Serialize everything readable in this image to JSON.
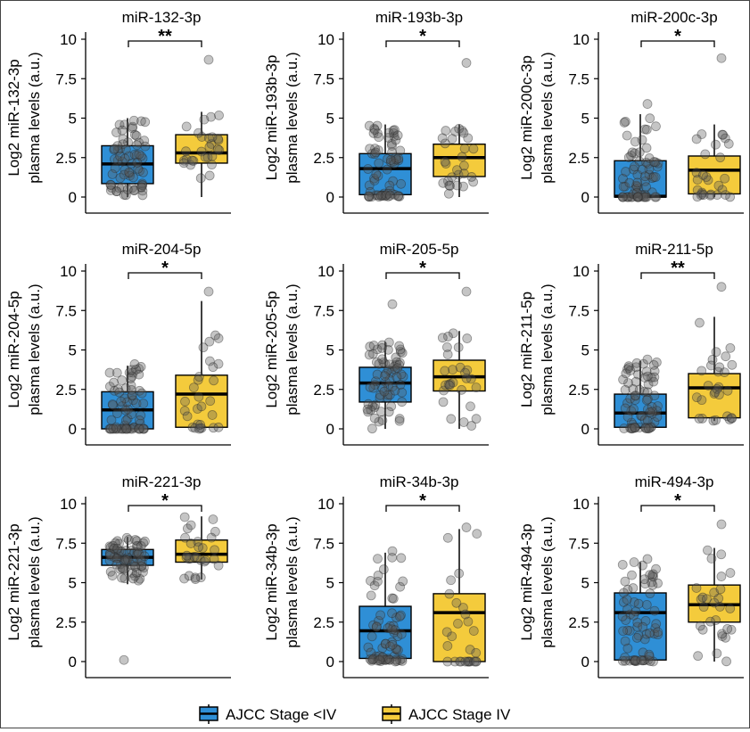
{
  "chart_data": [
    {
      "type": "box",
      "title": "miR-132-3p",
      "ylabel_lines": [
        "Log2 miR-132-3p",
        "plasma levels (a.u.)"
      ],
      "significance": "**",
      "groups": [
        {
          "q1": 0.85,
          "median": 2.1,
          "q3": 3.25,
          "whisker_low": 0,
          "whisker_high": 5.0,
          "max_point": 5.0
        },
        {
          "q1": 2.15,
          "median": 2.8,
          "q3": 3.95,
          "whisker_low": 0,
          "whisker_high": 5.4,
          "max_point": 8.7
        }
      ]
    },
    {
      "type": "box",
      "title": "miR-193b-3p",
      "ylabel_lines": [
        "Log2 miR-193b-3p",
        "plasma levels (a.u.)"
      ],
      "significance": "*",
      "groups": [
        {
          "q1": 0.15,
          "median": 1.8,
          "q3": 2.75,
          "whisker_low": 0,
          "whisker_high": 4.6,
          "max_point": 4.6
        },
        {
          "q1": 1.3,
          "median": 2.5,
          "q3": 3.35,
          "whisker_low": 0,
          "whisker_high": 4.6,
          "max_point": 8.5
        }
      ]
    },
    {
      "type": "box",
      "title": "miR-200c-3p",
      "ylabel_lines": [
        "Log2 miR-200c-3p",
        "plasma levels (a.u.)"
      ],
      "significance": "*",
      "groups": [
        {
          "q1": 0,
          "median": 0.05,
          "q3": 2.3,
          "whisker_low": 0,
          "whisker_high": 5.25,
          "max_point": 5.9
        },
        {
          "q1": 0.2,
          "median": 1.7,
          "q3": 2.6,
          "whisker_low": 0,
          "whisker_high": 4.6,
          "max_point": 8.8
        }
      ]
    },
    {
      "type": "box",
      "title": "miR-204-5p",
      "ylabel_lines": [
        "Log2 miR-204-5p",
        "plasma levels (a.u.)"
      ],
      "significance": "*",
      "groups": [
        {
          "q1": 0,
          "median": 1.2,
          "q3": 2.35,
          "whisker_low": 0,
          "whisker_high": 4.0,
          "max_point": 4.1
        },
        {
          "q1": 0.1,
          "median": 2.2,
          "q3": 3.4,
          "whisker_low": 0,
          "whisker_high": 8.1,
          "max_point": 8.7
        }
      ]
    },
    {
      "type": "box",
      "title": "miR-205-5p",
      "ylabel_lines": [
        "Log2 miR-205-5p",
        "plasma levels (a.u.)"
      ],
      "significance": "*",
      "groups": [
        {
          "q1": 1.7,
          "median": 2.9,
          "q3": 3.9,
          "whisker_low": 0,
          "whisker_high": 5.5,
          "max_point": 7.9
        },
        {
          "q1": 2.4,
          "median": 3.3,
          "q3": 4.35,
          "whisker_low": 0,
          "whisker_high": 6.2,
          "max_point": 8.7
        }
      ]
    },
    {
      "type": "box",
      "title": "miR-211-5p",
      "ylabel_lines": [
        "Log2 miR-211-5p",
        "plasma levels (a.u.)"
      ],
      "significance": "**",
      "groups": [
        {
          "q1": 0.1,
          "median": 1.0,
          "q3": 2.2,
          "whisker_low": 0,
          "whisker_high": 4.3,
          "max_point": 4.4
        },
        {
          "q1": 0.7,
          "median": 2.6,
          "q3": 3.5,
          "whisker_low": 0.5,
          "whisker_high": 7.1,
          "max_point": 9.0
        }
      ]
    },
    {
      "type": "box",
      "title": "miR-221-3p",
      "ylabel_lines": [
        "Log2 miR-221-3p",
        "plasma levels (a.u.)"
      ],
      "significance": "*",
      "groups": [
        {
          "q1": 6.1,
          "median": 6.6,
          "q3": 7.1,
          "whisker_low": 4.9,
          "whisker_high": 7.9,
          "min_point": 0.1
        },
        {
          "q1": 6.3,
          "median": 6.8,
          "q3": 7.7,
          "whisker_low": 5.2,
          "whisker_high": 9.2,
          "max_point": 9.2
        }
      ]
    },
    {
      "type": "box",
      "title": "miR-34b-3p",
      "ylabel_lines": [
        "Log2 miR-34b-3p",
        "plasma levels (a.u.)"
      ],
      "significance": "*",
      "groups": [
        {
          "q1": 0.2,
          "median": 1.95,
          "q3": 3.5,
          "whisker_low": 0,
          "whisker_high": 6.9,
          "max_point": 7.0
        },
        {
          "q1": 0,
          "median": 3.1,
          "q3": 4.3,
          "whisker_low": 0,
          "whisker_high": 8.4,
          "max_point": 8.5
        }
      ]
    },
    {
      "type": "box",
      "title": "miR-494-3p",
      "ylabel_lines": [
        "Log2 miR-494-3p",
        "plasma levels (a.u.)"
      ],
      "significance": "*",
      "groups": [
        {
          "q1": 0.1,
          "median": 3.1,
          "q3": 4.35,
          "whisker_low": 0,
          "whisker_high": 6.3,
          "max_point": 6.5
        },
        {
          "q1": 2.5,
          "median": 3.6,
          "q3": 4.85,
          "whisker_low": 0,
          "whisker_high": 7.2,
          "max_point": 8.7
        }
      ]
    }
  ],
  "shared": {
    "ylim": [
      0,
      10
    ],
    "yticks": [
      0,
      2.5,
      5,
      7.5,
      10
    ],
    "ytick_labels": [
      "0",
      "2.5",
      "5",
      "7.5",
      "10"
    ],
    "series": [
      {
        "name": "AJCC Stage <IV",
        "color": "#2f8fd6"
      },
      {
        "name": "AJCC Stage IV",
        "color": "#f4cb3c"
      }
    ],
    "legend_position": "bottom",
    "grid": false
  }
}
